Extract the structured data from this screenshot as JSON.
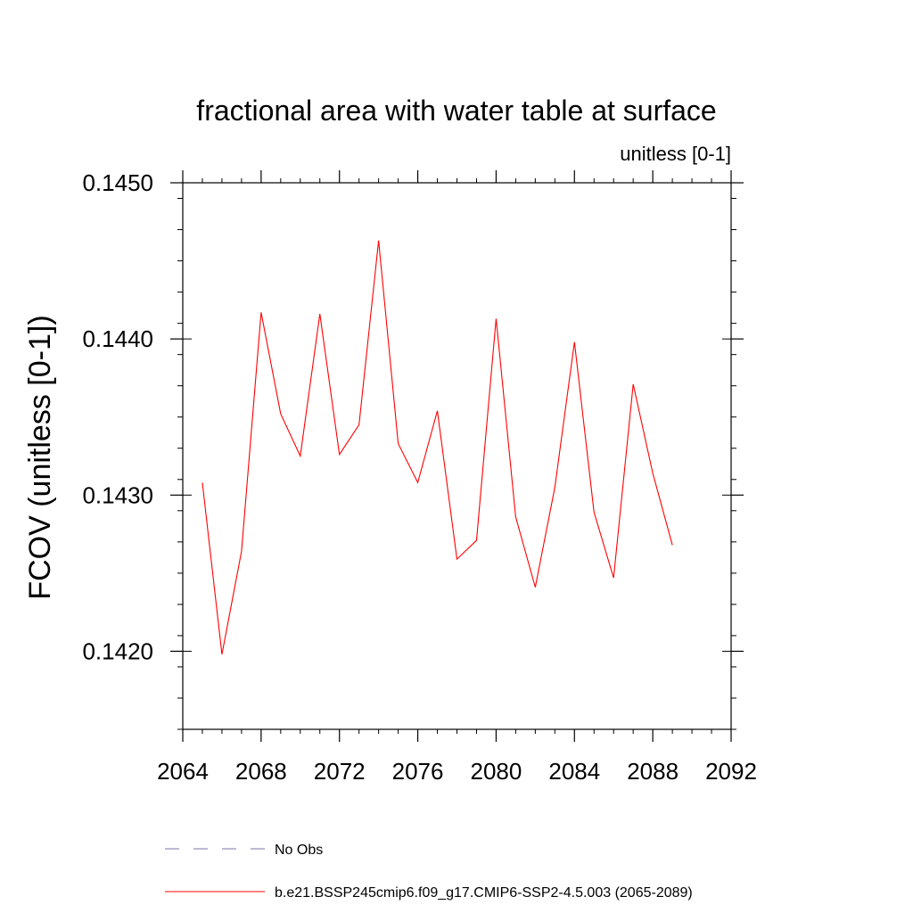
{
  "chart_data": {
    "type": "line",
    "title": "fractional area with water table at surface",
    "subtitle": "unitless [0-1]",
    "xlabel": "",
    "ylabel": "FCOV  (unitless [0-1])",
    "xlim": [
      2064,
      2092
    ],
    "ylim": [
      0.1415,
      0.145
    ],
    "x_ticks": [
      2064,
      2068,
      2072,
      2076,
      2080,
      2084,
      2088,
      2092
    ],
    "x_tick_labels": [
      "2064",
      "2068",
      "2072",
      "2076",
      "2080",
      "2084",
      "2088",
      "2092"
    ],
    "y_ticks": [
      0.142,
      0.143,
      0.144,
      0.145
    ],
    "y_tick_labels": [
      "0.1420",
      "0.1430",
      "0.1440",
      "0.1450"
    ],
    "grid": false,
    "legend_position": "bottom",
    "series": [
      {
        "name": "b.e21.BSSP245cmip6.f09_g17.CMIP6-SSP2-4.5.003 (2065-2089)",
        "color": "#ff0000",
        "style": "solid",
        "x": [
          2065,
          2066,
          2067,
          2068,
          2069,
          2070,
          2071,
          2072,
          2073,
          2074,
          2075,
          2076,
          2077,
          2078,
          2079,
          2080,
          2081,
          2082,
          2083,
          2084,
          2085,
          2086,
          2087,
          2088,
          2089
        ],
        "y": [
          0.14308,
          0.14198,
          0.14264,
          0.14417,
          0.14352,
          0.14325,
          0.14416,
          0.14326,
          0.14345,
          0.14463,
          0.14333,
          0.14308,
          0.14354,
          0.14259,
          0.14271,
          0.14413,
          0.14286,
          0.14241,
          0.14305,
          0.14398,
          0.14289,
          0.14247,
          0.14371,
          0.14314,
          0.14268
        ]
      },
      {
        "name": "No Obs",
        "color": "#7a7aa8",
        "style": "dashed",
        "x": [],
        "y": []
      }
    ]
  }
}
